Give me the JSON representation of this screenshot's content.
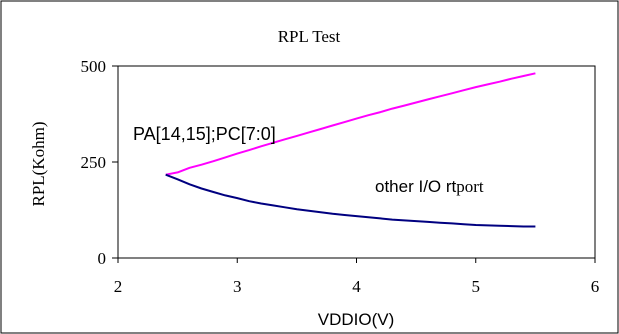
{
  "chart_data": {
    "type": "line",
    "title": "RPL Test",
    "xlabel": "VDDIO(V)",
    "ylabel": "RPL(Kohm)",
    "xlim": [
      2,
      6
    ],
    "ylim": [
      0,
      500
    ],
    "xticks": [
      2,
      3,
      4,
      5,
      6
    ],
    "yticks": [
      0,
      250,
      500
    ],
    "grid": false,
    "legend": "none",
    "annotations": [
      {
        "text_main": "PA[14,15];PC[7:0]",
        "text_suffix": "",
        "series": 0
      },
      {
        "text_main": "other I/O rt",
        "text_suffix": "port",
        "series": 1
      }
    ],
    "series": [
      {
        "color": "#ff00ff",
        "x": [
          2.4,
          2.5,
          2.6,
          2.7,
          2.8,
          2.9,
          3.0,
          3.1,
          3.2,
          3.3,
          3.4,
          3.5,
          3.6,
          3.7,
          3.8,
          3.9,
          4.0,
          4.1,
          4.2,
          4.3,
          4.4,
          4.5,
          4.6,
          4.7,
          4.8,
          4.9,
          5.0,
          5.1,
          5.2,
          5.3,
          5.4,
          5.5
        ],
        "y": [
          217,
          223,
          235,
          243,
          252,
          262,
          272,
          281,
          291,
          300,
          309,
          318,
          327,
          336,
          345,
          354,
          363,
          372,
          380,
          389,
          397,
          405,
          413,
          421,
          429,
          437,
          445,
          452,
          459,
          467,
          474,
          481
        ]
      },
      {
        "color": "#000080",
        "x": [
          2.4,
          2.5,
          2.6,
          2.7,
          2.8,
          2.9,
          3.0,
          3.1,
          3.2,
          3.3,
          3.4,
          3.5,
          3.6,
          3.7,
          3.8,
          3.9,
          4.0,
          4.1,
          4.2,
          4.3,
          4.4,
          4.5,
          4.6,
          4.7,
          4.8,
          4.9,
          5.0,
          5.1,
          5.2,
          5.3,
          5.4,
          5.5
        ],
        "y": [
          217,
          205,
          192,
          181,
          172,
          163,
          156,
          148,
          142,
          137,
          132,
          127,
          123,
          119,
          115,
          112,
          109,
          106,
          103,
          100,
          98,
          96,
          94,
          92,
          90,
          88,
          86,
          85,
          84,
          83,
          82,
          82
        ]
      }
    ]
  }
}
